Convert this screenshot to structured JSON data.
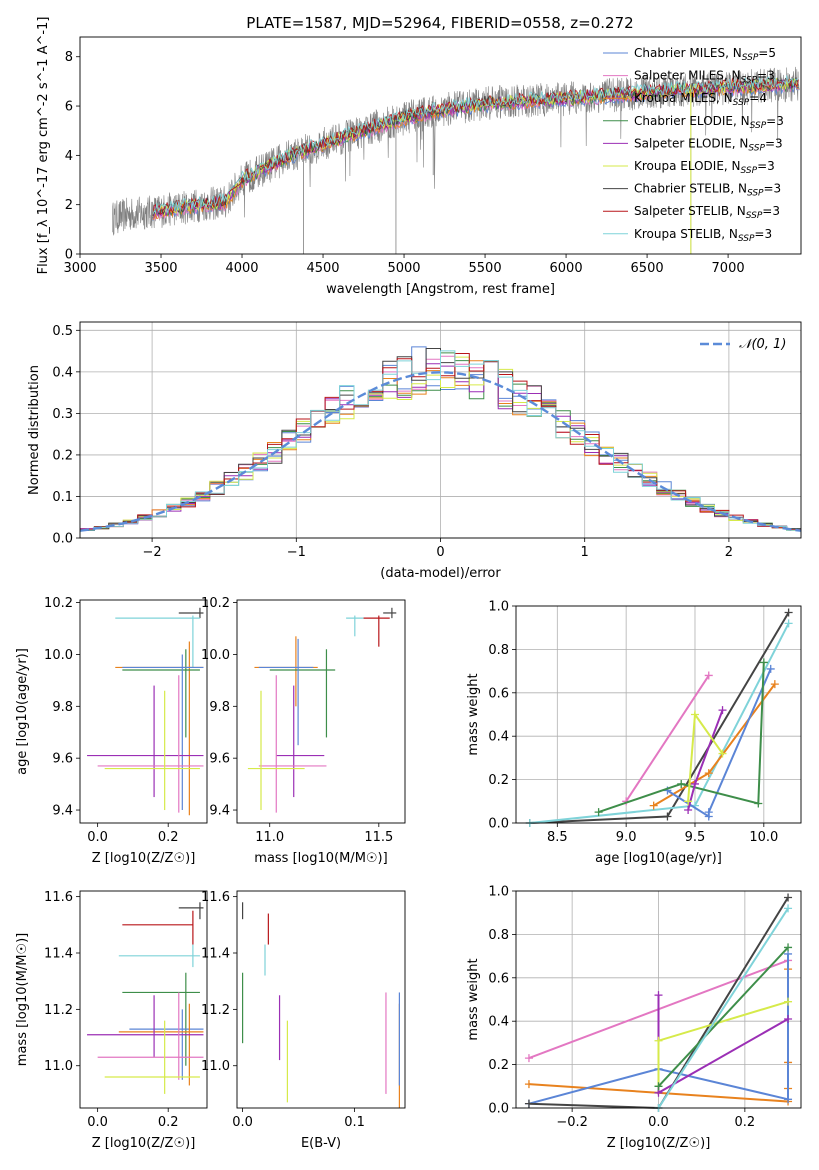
{
  "title": "PLATE=1587, MJD=52964, FIBERID=0558, z=0.272",
  "colors": {
    "Chabrier MILES": "#5b85d6",
    "Salpeter MILES": "#e377c2",
    "Kroupa MILES": "#e8821e",
    "Chabrier ELODIE": "#3e8e4a",
    "Salpeter ELODIE": "#9b2fb5",
    "Kroupa ELODIE": "#d6ea4a",
    "Chabrier STELIB": "#444444",
    "Salpeter STELIB": "#b8161a",
    "Kroupa STELIB": "#7fd3d9",
    "data": "#808080",
    "normal": "#5b8bd8"
  },
  "chart_data": [
    {
      "id": "spectrum",
      "type": "line",
      "xlabel": "wavelength [Angstrom, rest frame]",
      "ylabel": "Flux [f_λ 10^-17 erg cm^-2 s^-1 A^-1]",
      "xlim": [
        3000,
        7450
      ],
      "ylim": [
        0,
        8.8
      ],
      "xticks": [
        3000,
        3500,
        4000,
        4500,
        5000,
        5500,
        6000,
        6500,
        7000
      ],
      "yticks": [
        0,
        2,
        4,
        6,
        8
      ],
      "grid": false,
      "legend_position": "top-right",
      "legend": [
        {
          "model": "Chabrier MILES",
          "label": "Chabrier MILES, N",
          "sub": "SSP",
          "tail": "=5"
        },
        {
          "model": "Salpeter MILES",
          "label": "Salpeter MILES, N",
          "sub": "SSP",
          "tail": "=3"
        },
        {
          "model": "Kroupa MILES",
          "label": "Kroupa MILES, N",
          "sub": "SSP",
          "tail": "=4"
        },
        {
          "model": "Chabrier ELODIE",
          "label": "Chabrier ELODIE, N",
          "sub": "SSP",
          "tail": "=3"
        },
        {
          "model": "Salpeter ELODIE",
          "label": "Salpeter ELODIE, N",
          "sub": "SSP",
          "tail": "=3"
        },
        {
          "model": "Kroupa ELODIE",
          "label": "Kroupa ELODIE, N",
          "sub": "SSP",
          "tail": "=3"
        },
        {
          "model": "Chabrier STELIB",
          "label": "Chabrier STELIB, N",
          "sub": "SSP",
          "tail": "=3"
        },
        {
          "model": "Salpeter STELIB",
          "label": "Salpeter STELIB, N",
          "sub": "SSP",
          "tail": "=3"
        },
        {
          "model": "Kroupa STELIB",
          "label": "Kroupa STELIB, N",
          "sub": "SSP",
          "tail": "=3"
        }
      ],
      "continuum_anchors": [
        [
          3200,
          1.45
        ],
        [
          3300,
          1.6
        ],
        [
          3500,
          1.75
        ],
        [
          3700,
          1.95
        ],
        [
          3900,
          2.1
        ],
        [
          4000,
          3.0
        ],
        [
          4300,
          4.0
        ],
        [
          4700,
          4.9
        ],
        [
          5000,
          5.5
        ],
        [
          5200,
          5.8
        ],
        [
          5500,
          6.1
        ],
        [
          6000,
          6.3
        ],
        [
          6500,
          6.55
        ],
        [
          7000,
          6.75
        ],
        [
          7440,
          6.9
        ]
      ],
      "data_range": [
        3200,
        7440
      ],
      "models_range": [
        3450,
        7440
      ]
    },
    {
      "id": "residuals",
      "type": "histogram",
      "xlabel": "(data-model)/error",
      "ylabel": "Normed distribution",
      "xlim": [
        -2.5,
        2.5
      ],
      "ylim": [
        0,
        0.52
      ],
      "xticks": [
        -2,
        -1,
        0,
        1,
        2
      ],
      "xticklabels": [
        "−2",
        "−1",
        "0",
        "1",
        "2"
      ],
      "yticks": [
        0.0,
        0.1,
        0.2,
        0.3,
        0.4,
        0.5
      ],
      "yticklabels": [
        "0.0",
        "0.1",
        "0.2",
        "0.3",
        "0.4",
        "0.5"
      ],
      "grid": true,
      "bin_width": 0.1,
      "legend_position": "top-right",
      "reference_curve": {
        "label": "𝒩(0, 1)",
        "mean": 0,
        "sigma": 1
      }
    },
    {
      "id": "age_vs_Z",
      "type": "scatter",
      "xlabel": "Z [log10(Z/Z☉)]",
      "ylabel": "age  [log10(age/yr)]",
      "xlim": [
        -0.05,
        0.31
      ],
      "ylim": [
        9.35,
        10.21
      ],
      "xticks": [
        0.0,
        0.2
      ],
      "xticklabels": [
        "0.0",
        "0.2"
      ],
      "yticks": [
        9.4,
        9.6,
        9.8,
        10.0,
        10.2
      ],
      "yticklabels": [
        "9.4",
        "9.6",
        "9.8",
        "10.0",
        "10.2"
      ],
      "points": [
        {
          "model": "Chabrier STELIB",
          "x": 0.29,
          "xlo": 0.23,
          "xhi": 0.3,
          "y": 10.16,
          "ylo": 10.14,
          "yhi": 10.18
        },
        {
          "model": "Kroupa STELIB",
          "x": 0.27,
          "xlo": 0.05,
          "xhi": 0.29,
          "y": 10.14,
          "ylo": 9.95,
          "yhi": 10.15
        },
        {
          "model": "Kroupa MILES",
          "x": 0.26,
          "xlo": 0.05,
          "xhi": 0.3,
          "y": 9.95,
          "ylo": 9.38,
          "yhi": 10.05
        },
        {
          "model": "Chabrier ELODIE",
          "x": 0.25,
          "xlo": 0.07,
          "xhi": 0.29,
          "y": 9.94,
          "ylo": 9.68,
          "yhi": 10.02
        },
        {
          "model": "Chabrier MILES",
          "x": 0.24,
          "xlo": 0.07,
          "xhi": 0.3,
          "y": 9.95,
          "ylo": 9.4,
          "yhi": 10.0
        },
        {
          "model": "Salpeter ELODIE",
          "x": 0.16,
          "xlo": -0.03,
          "xhi": 0.3,
          "y": 9.61,
          "ylo": 9.45,
          "yhi": 9.88
        },
        {
          "model": "Salpeter MILES",
          "x": 0.23,
          "xlo": 0.0,
          "xhi": 0.3,
          "y": 9.57,
          "ylo": 9.39,
          "yhi": 9.92
        },
        {
          "model": "Kroupa ELODIE",
          "x": 0.19,
          "xlo": 0.02,
          "xhi": 0.29,
          "y": 9.56,
          "ylo": 9.4,
          "yhi": 9.86
        }
      ]
    },
    {
      "id": "age_vs_mass",
      "type": "scatter",
      "xlabel": "mass [log10(M/M☉)]",
      "ylabel": "",
      "xlim": [
        10.85,
        11.62
      ],
      "ylim": [
        9.35,
        10.21
      ],
      "xticks": [
        11.0,
        11.5
      ],
      "xticklabels": [
        "11.0",
        "11.5"
      ],
      "yticks": [
        9.4,
        9.6,
        9.8,
        10.0,
        10.2
      ],
      "yticklabels": [
        "9.4",
        "9.6",
        "9.8",
        "10.0",
        "10.2"
      ],
      "points": [
        {
          "model": "Chabrier STELIB",
          "x": 11.56,
          "xlo": 11.52,
          "xhi": 11.58,
          "y": 10.16,
          "ylo": 10.14,
          "yhi": 10.18
        },
        {
          "model": "Kroupa STELIB",
          "x": 11.39,
          "xlo": 11.35,
          "xhi": 11.43,
          "y": 10.14,
          "ylo": 10.07,
          "yhi": 10.15
        },
        {
          "model": "Salpeter STELIB",
          "x": 11.5,
          "xlo": 11.43,
          "xhi": 11.55,
          "y": 10.14,
          "ylo": 10.03,
          "yhi": 10.15
        },
        {
          "model": "Kroupa MILES",
          "x": 11.12,
          "xlo": 10.93,
          "xhi": 11.22,
          "y": 9.95,
          "ylo": 9.8,
          "yhi": 10.07
        },
        {
          "model": "Chabrier ELODIE",
          "x": 11.26,
          "xlo": 11.0,
          "xhi": 11.3,
          "y": 9.94,
          "ylo": 9.68,
          "yhi": 10.02
        },
        {
          "model": "Chabrier MILES",
          "x": 11.13,
          "xlo": 10.95,
          "xhi": 11.2,
          "y": 9.95,
          "ylo": 9.65,
          "yhi": 10.06
        },
        {
          "model": "Salpeter ELODIE",
          "x": 11.11,
          "xlo": 11.03,
          "xhi": 11.25,
          "y": 9.61,
          "ylo": 9.45,
          "yhi": 9.88
        },
        {
          "model": "Salpeter MILES",
          "x": 11.03,
          "xlo": 10.95,
          "xhi": 11.26,
          "y": 9.57,
          "ylo": 9.39,
          "yhi": 9.92
        },
        {
          "model": "Kroupa ELODIE",
          "x": 10.96,
          "xlo": 10.9,
          "xhi": 11.16,
          "y": 9.56,
          "ylo": 9.4,
          "yhi": 9.86
        }
      ]
    },
    {
      "id": "mass_weight_vs_age",
      "type": "line",
      "xlabel": "age  [log10(age/yr)]",
      "ylabel": "mass weight",
      "xlim": [
        8.2,
        10.27
      ],
      "ylim": [
        0,
        1
      ],
      "xticks": [
        8.5,
        9.0,
        9.5,
        10.0
      ],
      "xticklabels": [
        "8.5",
        "9.0",
        "9.5",
        "10.0"
      ],
      "yticks": [
        0.0,
        0.2,
        0.4,
        0.6,
        0.8,
        1.0
      ],
      "yticklabels": [
        "0.0",
        "0.2",
        "0.4",
        "0.6",
        "0.8",
        "1.0"
      ],
      "grid": true,
      "series": [
        {
          "model": "Salpeter MILES",
          "x": [
            9.0,
            9.6
          ],
          "y": [
            0.1,
            0.68
          ]
        },
        {
          "model": "Chabrier STELIB",
          "x": [
            8.3,
            9.3,
            10.18
          ],
          "y": [
            0.0,
            0.03,
            0.97
          ]
        },
        {
          "model": "Kroupa STELIB",
          "x": [
            8.3,
            9.5,
            10.18
          ],
          "y": [
            0.0,
            0.08,
            0.92
          ]
        },
        {
          "model": "Kroupa MILES",
          "x": [
            9.2,
            9.6,
            10.08
          ],
          "y": [
            0.08,
            0.23,
            0.64
          ]
        },
        {
          "model": "Chabrier MILES",
          "x": [
            9.3,
            9.6,
            9.6,
            10.05
          ],
          "y": [
            0.15,
            0.03,
            0.05,
            0.71
          ]
        },
        {
          "model": "Chabrier ELODIE",
          "x": [
            8.8,
            9.4,
            9.96,
            10.0
          ],
          "y": [
            0.05,
            0.18,
            0.09,
            0.74
          ]
        },
        {
          "model": "Salpeter ELODIE",
          "x": [
            9.45,
            9.5,
            9.7
          ],
          "y": [
            0.06,
            0.18,
            0.52
          ]
        },
        {
          "model": "Kroupa ELODIE",
          "x": [
            9.45,
            9.5,
            9.7
          ],
          "y": [
            0.1,
            0.5,
            0.32
          ]
        }
      ]
    },
    {
      "id": "mass_vs_Z",
      "type": "scatter",
      "xlabel": "Z [log10(Z/Z☉)]",
      "ylabel": "mass [log10(M/M☉)]",
      "xlim": [
        -0.05,
        0.31
      ],
      "ylim": [
        10.85,
        11.62
      ],
      "xticks": [
        0.0,
        0.2
      ],
      "xticklabels": [
        "0.0",
        "0.2"
      ],
      "yticks": [
        11.0,
        11.2,
        11.4,
        11.6
      ],
      "yticklabels": [
        "11.0",
        "11.2",
        "11.4",
        "11.6"
      ],
      "points": [
        {
          "model": "Chabrier STELIB",
          "x": 0.29,
          "xlo": 0.23,
          "xhi": 0.3,
          "y": 11.56,
          "ylo": 11.52,
          "yhi": 11.58
        },
        {
          "model": "Salpeter STELIB",
          "x": 0.27,
          "xlo": 0.07,
          "xhi": 0.27,
          "y": 11.5,
          "ylo": 11.43,
          "yhi": 11.55
        },
        {
          "model": "Kroupa STELIB",
          "x": 0.27,
          "xlo": 0.06,
          "xhi": 0.29,
          "y": 11.39,
          "ylo": 11.35,
          "yhi": 11.43
        },
        {
          "model": "Chabrier ELODIE",
          "x": 0.25,
          "xlo": 0.07,
          "xhi": 0.29,
          "y": 11.26,
          "ylo": 11.0,
          "yhi": 11.33
        },
        {
          "model": "Chabrier MILES",
          "x": 0.24,
          "xlo": 0.09,
          "xhi": 0.3,
          "y": 11.13,
          "ylo": 10.95,
          "yhi": 11.2
        },
        {
          "model": "Kroupa MILES",
          "x": 0.26,
          "xlo": 0.06,
          "xhi": 0.3,
          "y": 11.12,
          "ylo": 10.93,
          "yhi": 11.22
        },
        {
          "model": "Salpeter ELODIE",
          "x": 0.16,
          "xlo": -0.03,
          "xhi": 0.3,
          "y": 11.11,
          "ylo": 11.03,
          "yhi": 11.25
        },
        {
          "model": "Salpeter MILES",
          "x": 0.23,
          "xlo": 0.0,
          "xhi": 0.3,
          "y": 11.03,
          "ylo": 10.95,
          "yhi": 11.26
        },
        {
          "model": "Kroupa ELODIE",
          "x": 0.19,
          "xlo": 0.02,
          "xhi": 0.29,
          "y": 10.96,
          "ylo": 10.9,
          "yhi": 11.16
        }
      ]
    },
    {
      "id": "mass_vs_ebv",
      "type": "scatter",
      "xlabel": "E(B-V)",
      "ylabel": "",
      "xlim": [
        -0.005,
        0.145
      ],
      "ylim": [
        10.85,
        11.62
      ],
      "xticks": [
        0.0,
        0.1
      ],
      "xticklabels": [
        "0.0",
        "0.1"
      ],
      "yticks": [
        11.0,
        11.2,
        11.4,
        11.6
      ],
      "yticklabels": [
        "11.0",
        "11.2",
        "11.4",
        "11.6"
      ],
      "points": [
        {
          "model": "Chabrier STELIB",
          "x": 0.0,
          "y": 11.56,
          "ylo": 11.52,
          "yhi": 11.58
        },
        {
          "model": "Salpeter STELIB",
          "x": 0.023,
          "y": 11.5,
          "ylo": 11.43,
          "yhi": 11.54
        },
        {
          "model": "Kroupa STELIB",
          "x": 0.02,
          "y": 11.39,
          "ylo": 11.32,
          "yhi": 11.43
        },
        {
          "model": "Chabrier ELODIE",
          "x": 0.0,
          "y": 11.26,
          "ylo": 11.08,
          "yhi": 11.33
        },
        {
          "model": "Salpeter ELODIE",
          "x": 0.033,
          "y": 11.11,
          "ylo": 11.02,
          "yhi": 11.25
        },
        {
          "model": "Kroupa ELODIE",
          "x": 0.04,
          "y": 10.96,
          "ylo": 10.87,
          "yhi": 11.16
        },
        {
          "model": "Salpeter MILES",
          "x": 0.128,
          "y": 11.03,
          "ylo": 10.9,
          "yhi": 11.26
        },
        {
          "model": "Kroupa MILES",
          "x": 0.14,
          "y": 11.12,
          "ylo": 10.85,
          "yhi": 11.22
        },
        {
          "model": "Chabrier MILES",
          "x": 0.14,
          "y": 11.13,
          "ylo": 10.93,
          "yhi": 11.26
        }
      ]
    },
    {
      "id": "mass_weight_vs_Z",
      "type": "line",
      "xlabel": "Z [log10(Z/Z☉)]",
      "ylabel": "mass weight",
      "xlim": [
        -0.33,
        0.33
      ],
      "ylim": [
        0,
        1
      ],
      "xticks": [
        -0.2,
        0.0,
        0.2
      ],
      "xticklabels": [
        "−0.2",
        "0.0",
        "0.2"
      ],
      "yticks": [
        0.0,
        0.2,
        0.4,
        0.6,
        0.8,
        1.0
      ],
      "yticklabels": [
        "0.0",
        "0.2",
        "0.4",
        "0.6",
        "0.8",
        "1.0"
      ],
      "grid": true,
      "series": [
        {
          "model": "Salpeter MILES",
          "x": [
            -0.3,
            0.3
          ],
          "y": [
            0.23,
            0.68
          ]
        },
        {
          "model": "Kroupa MILES",
          "x": [
            -0.3,
            0.3,
            0.3,
            0.3,
            0.3
          ],
          "y": [
            0.11,
            0.03,
            0.09,
            0.21,
            0.64
          ]
        },
        {
          "model": "Chabrier MILES",
          "x": [
            -0.3,
            0.0,
            0.3,
            0.3
          ],
          "y": [
            0.02,
            0.18,
            0.04,
            0.71
          ]
        },
        {
          "model": "Chabrier STELIB",
          "x": [
            -0.3,
            0.0,
            0.3
          ],
          "y": [
            0.02,
            0.0,
            0.97
          ]
        },
        {
          "model": "Salpeter ELODIE",
          "x": [
            0.0,
            0.0,
            0.3
          ],
          "y": [
            0.52,
            0.07,
            0.41
          ]
        },
        {
          "model": "Kroupa ELODIE",
          "x": [
            0.0,
            0.0,
            0.3
          ],
          "y": [
            0.1,
            0.31,
            0.49
          ]
        },
        {
          "model": "Chabrier ELODIE",
          "x": [
            0.0,
            0.3
          ],
          "y": [
            0.1,
            0.74
          ]
        },
        {
          "model": "Kroupa STELIB",
          "x": [
            0.0,
            0.3
          ],
          "y": [
            0.0,
            0.92
          ]
        }
      ]
    }
  ]
}
